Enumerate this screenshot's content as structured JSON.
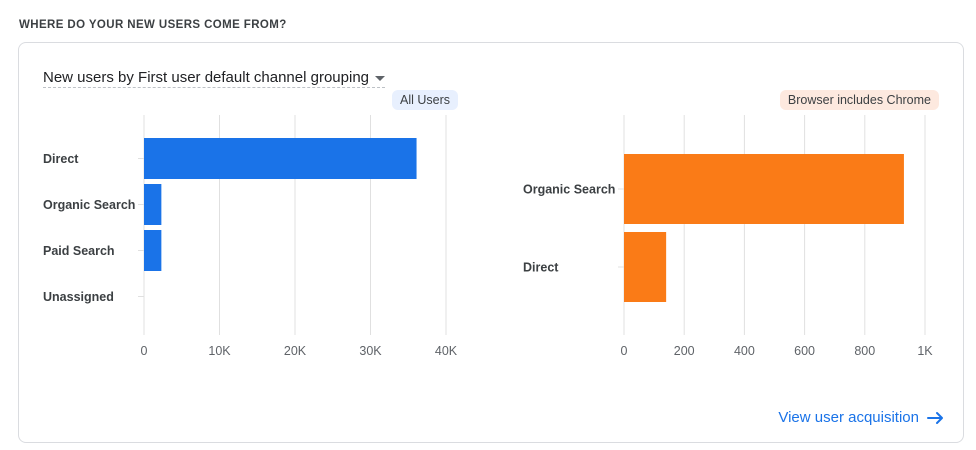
{
  "section_title": "WHERE DO YOUR NEW USERS COME FROM?",
  "dimension_picker": {
    "label": "New users by First user default channel grouping",
    "icon": "caret-down-icon"
  },
  "link": {
    "label": "View user acquisition",
    "icon": "arrow-right-icon"
  },
  "colors": {
    "blue": "#1a73e8",
    "orange": "#fa7b17",
    "grid": "#e0e0e0",
    "link": "#1a73e8"
  },
  "chart_data": [
    {
      "type": "bar",
      "orientation": "horizontal",
      "segment_label": "All Users",
      "categories": [
        "Direct",
        "Organic Search",
        "Paid Search",
        "Unassigned"
      ],
      "values": [
        36100,
        2300,
        2300,
        0
      ],
      "xlim": [
        0,
        40000
      ],
      "ticks": [
        0,
        10000,
        20000,
        30000,
        40000
      ],
      "tick_labels": [
        "0",
        "10K",
        "20K",
        "30K",
        "40K"
      ],
      "color": "#1a73e8",
      "grid": true
    },
    {
      "type": "bar",
      "orientation": "horizontal",
      "segment_label": "Browser includes Chrome",
      "categories": [
        "Organic Search",
        "Direct"
      ],
      "values": [
        930,
        140
      ],
      "xlim": [
        0,
        1000
      ],
      "ticks": [
        0,
        200,
        400,
        600,
        800,
        1000
      ],
      "tick_labels": [
        "0",
        "200",
        "400",
        "600",
        "800",
        "1K"
      ],
      "color": "#fa7b17",
      "grid": true
    }
  ]
}
